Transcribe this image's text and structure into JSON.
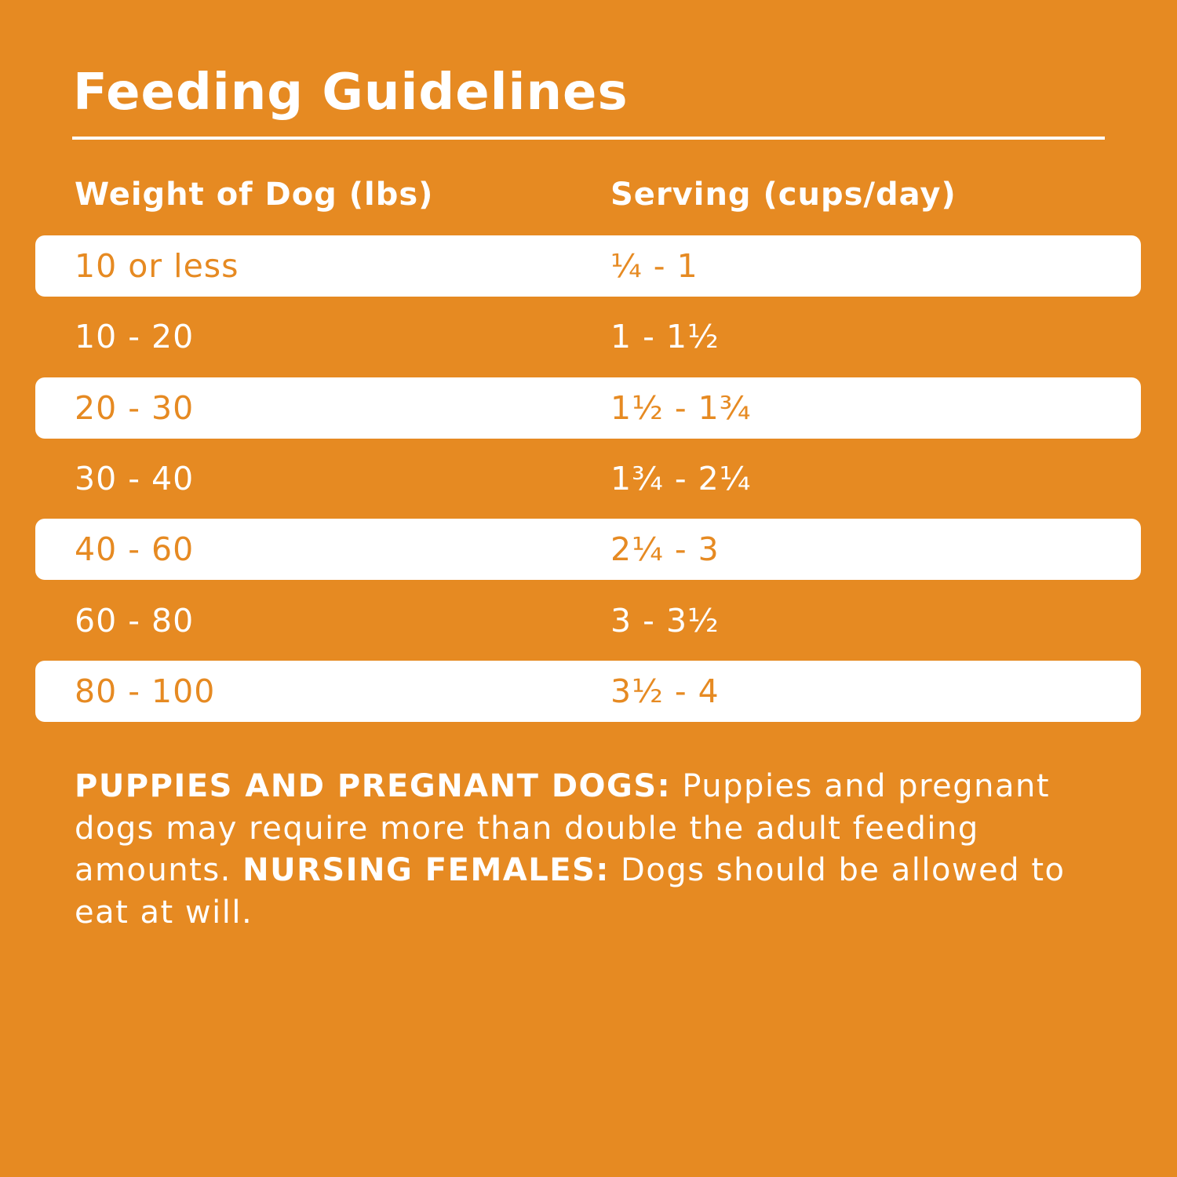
{
  "title": "Feeding Guidelines",
  "colors": {
    "background": "#E68A22",
    "highlight_row": "#FFFFFF",
    "text": "#FFFFFF"
  },
  "table": {
    "headers": [
      "Weight of Dog (lbs)",
      "Serving (cups/day)"
    ],
    "rows": [
      {
        "weight": "10 or less",
        "serving": "¼ - 1"
      },
      {
        "weight": "10 - 20",
        "serving": "1 - 1½"
      },
      {
        "weight": "20 - 30",
        "serving": "1½ - 1¾"
      },
      {
        "weight": "30 - 40",
        "serving": "1¾ - 2¼"
      },
      {
        "weight": "40 - 60",
        "serving": "2¼ - 3"
      },
      {
        "weight": "60 - 80",
        "serving": "3 - 3½"
      },
      {
        "weight": "80 - 100",
        "serving": "3½ - 4"
      }
    ]
  },
  "note": {
    "label1": "PUPPIES AND PREGNANT DOGS:",
    "text1": " Puppies and pregnant dogs may require more than double the adult feeding amounts. ",
    "label2": "NURSING FEMALES:",
    "text2": " Dogs should be allowed to eat at will."
  }
}
